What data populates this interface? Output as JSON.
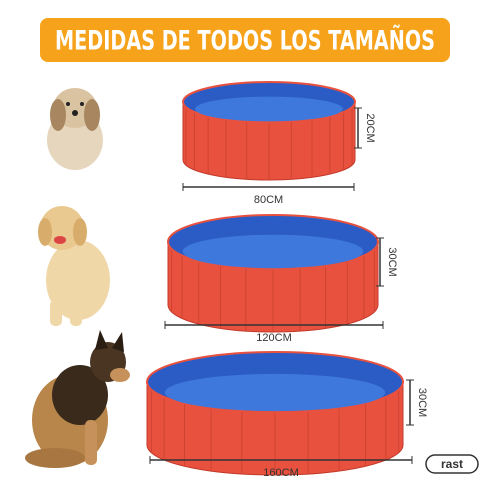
{
  "header": {
    "title": "MEDIDAS DE TODOS LOS TAMAÑOS"
  },
  "pools": [
    {
      "width_label": "80CM",
      "height_label": "20CM"
    },
    {
      "width_label": "120CM",
      "height_label": "30CM"
    },
    {
      "width_label": "160CM",
      "height_label": "30CM"
    }
  ],
  "logo": "rast"
}
